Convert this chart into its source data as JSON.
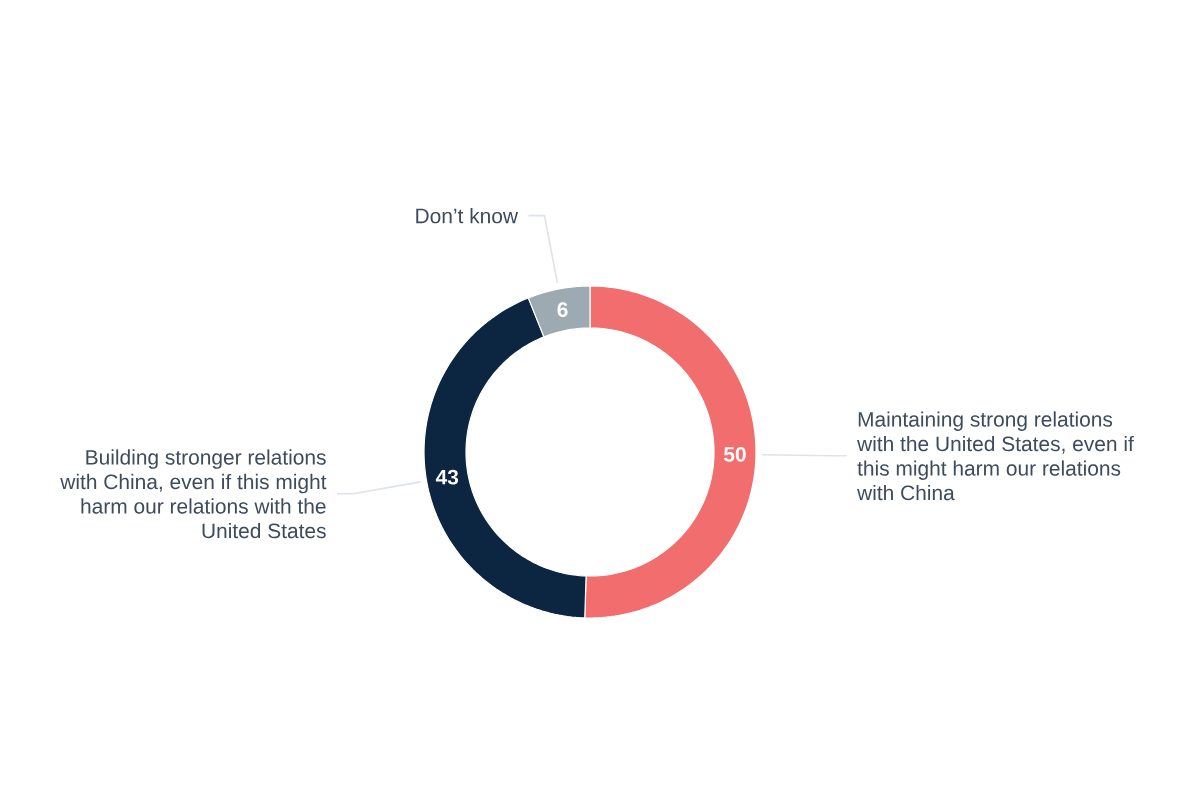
{
  "chart_data": {
    "type": "donut",
    "categories": [
      "Maintaining strong relations with the United States, even if this might harm our relations with China",
      "Building stronger relations with China, even if this might harm our relations with the United States",
      "Don’t know"
    ],
    "values": [
      50,
      43,
      6
    ],
    "colors": [
      "#f26d6e",
      "#0c2540",
      "#9eaab1"
    ],
    "data_labels": true
  }
}
